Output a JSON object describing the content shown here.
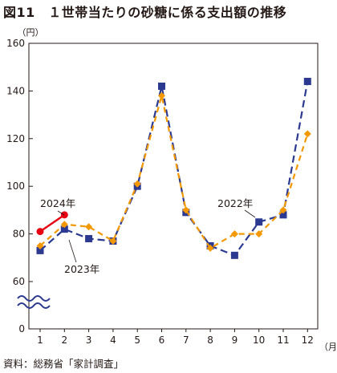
{
  "header": {
    "title": "図11　１世帯当たりの砂糖に係る支出額の推移"
  },
  "footer": {
    "source": "資料：総務省「家計調査」"
  },
  "chart_data": {
    "type": "line",
    "title": "図11　１世帯当たりの砂糖に係る支出額の推移",
    "y_unit": "（円）",
    "x_unit": "（月）",
    "categories": [
      "1",
      "2",
      "3",
      "4",
      "5",
      "6",
      "7",
      "8",
      "9",
      "10",
      "11",
      "12"
    ],
    "y_ticks": [
      "160",
      "140",
      "120",
      "100",
      "80",
      "60",
      "0"
    ],
    "y_tick_values": [
      160,
      140,
      120,
      100,
      80,
      60,
      0
    ],
    "axis_break": "between 0 and 60",
    "ylim": [
      0,
      160
    ],
    "grid": false,
    "legend": "inline labels",
    "series": [
      {
        "name": "2022年",
        "color": "#2b3990",
        "marker": "square",
        "line_style": "dashed",
        "values": [
          73,
          82,
          78,
          77,
          100,
          142,
          89,
          75,
          71,
          85,
          88,
          144
        ]
      },
      {
        "name": "2023年",
        "color": "#f39800",
        "marker": "diamond",
        "line_style": "dashed",
        "values": [
          75,
          84,
          83,
          77,
          101,
          138,
          90,
          74,
          80,
          80,
          90,
          122
        ]
      },
      {
        "name": "2024年",
        "color": "#e60012",
        "marker": "circle",
        "line_style": "solid",
        "values": [
          81,
          88,
          null,
          null,
          null,
          null,
          null,
          null,
          null,
          null,
          null,
          null
        ]
      }
    ]
  }
}
